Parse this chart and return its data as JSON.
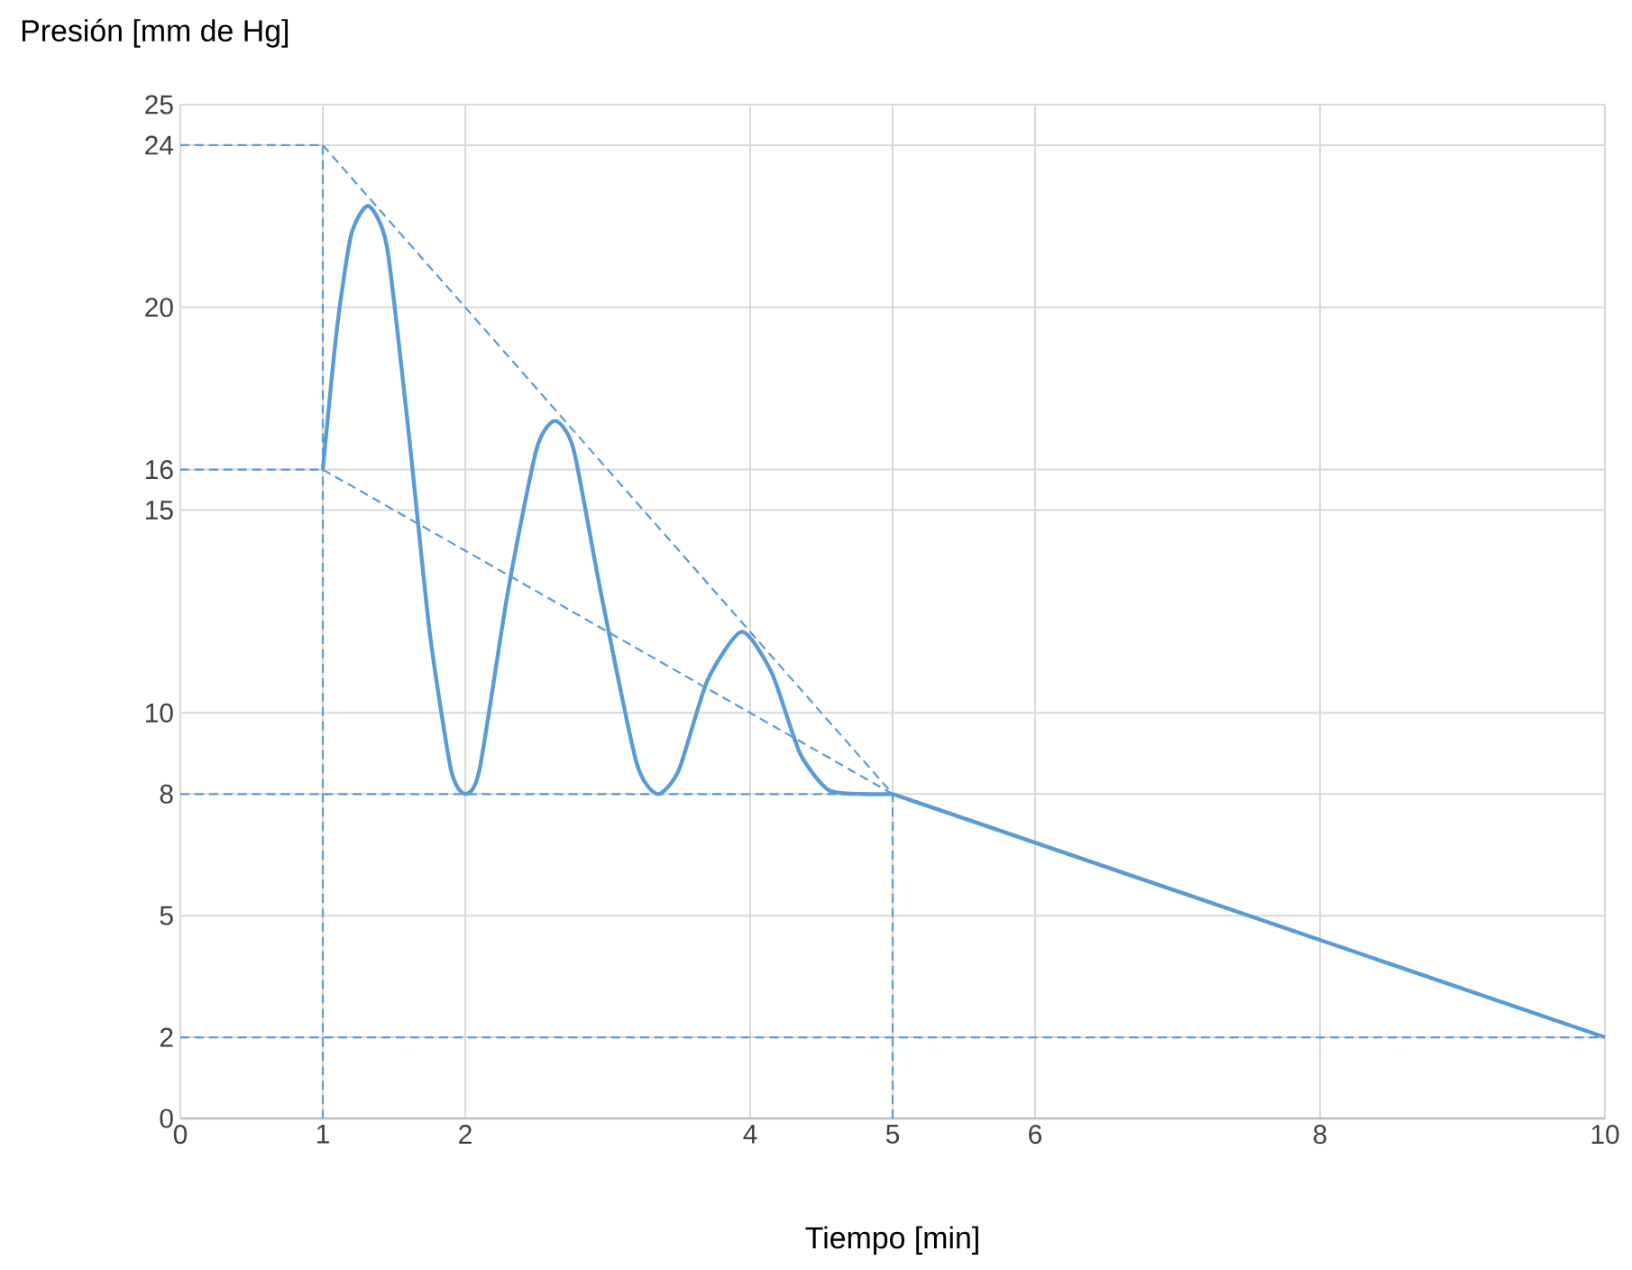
{
  "chart_data": {
    "type": "line",
    "xlabel": "Tiempo [min]",
    "ylabel": "Presión [mm de Hg]",
    "xlim": [
      0,
      10
    ],
    "ylim": [
      0,
      25
    ],
    "xticks": [
      0,
      1,
      2,
      4,
      5,
      6,
      8,
      10
    ],
    "yticks": [
      0,
      2,
      5,
      8,
      10,
      15,
      16,
      20,
      24,
      25
    ],
    "grid": true,
    "marker": "none",
    "series": [
      {
        "color": "#5b9bd5",
        "line_style": "solid",
        "x": [
          1,
          1.1,
          1.2,
          1.32,
          1.45,
          1.6,
          1.75,
          1.9,
          2,
          2.1,
          2.3,
          2.5,
          2.63,
          2.76,
          2.95,
          3.2,
          3.35,
          3.5,
          3.7,
          3.94,
          4.15,
          4.35,
          4.55,
          4.8,
          5
        ],
        "values": [
          16,
          19.5,
          21.8,
          22.5,
          21.5,
          17,
          12,
          8.6,
          8,
          8.6,
          13,
          16.5,
          17.2,
          16.5,
          13,
          8.8,
          8,
          8.6,
          10.8,
          12,
          11,
          9,
          8.1,
          8,
          8
        ]
      },
      {
        "color": "#5b9bd5",
        "line_style": "solid",
        "x": [
          5,
          10
        ],
        "values": [
          8,
          2
        ]
      },
      {
        "color": "#5b9bd5",
        "line_style": "dashed",
        "x": [
          0,
          1
        ],
        "values": [
          24,
          24
        ]
      },
      {
        "color": "#5b9bd5",
        "line_style": "dashed",
        "x": [
          0,
          1
        ],
        "values": [
          16,
          16
        ]
      },
      {
        "color": "#5b9bd5",
        "line_style": "dashed",
        "x": [
          0,
          5
        ],
        "values": [
          8,
          8
        ]
      },
      {
        "color": "#5b9bd5",
        "line_style": "dashed",
        "x": [
          0,
          10
        ],
        "values": [
          2,
          2
        ]
      },
      {
        "color": "#5b9bd5",
        "line_style": "dashed",
        "x": [
          1,
          1
        ],
        "values": [
          0,
          24
        ]
      },
      {
        "color": "#5b9bd5",
        "line_style": "dashed",
        "x": [
          5,
          5
        ],
        "values": [
          0,
          8
        ]
      },
      {
        "color": "#5b9bd5",
        "line_style": "dashed",
        "x": [
          1,
          5
        ],
        "values": [
          24,
          8
        ]
      },
      {
        "color": "#5b9bd5",
        "line_style": "dashed",
        "x": [
          1,
          5
        ],
        "values": [
          16,
          8
        ]
      }
    ]
  }
}
